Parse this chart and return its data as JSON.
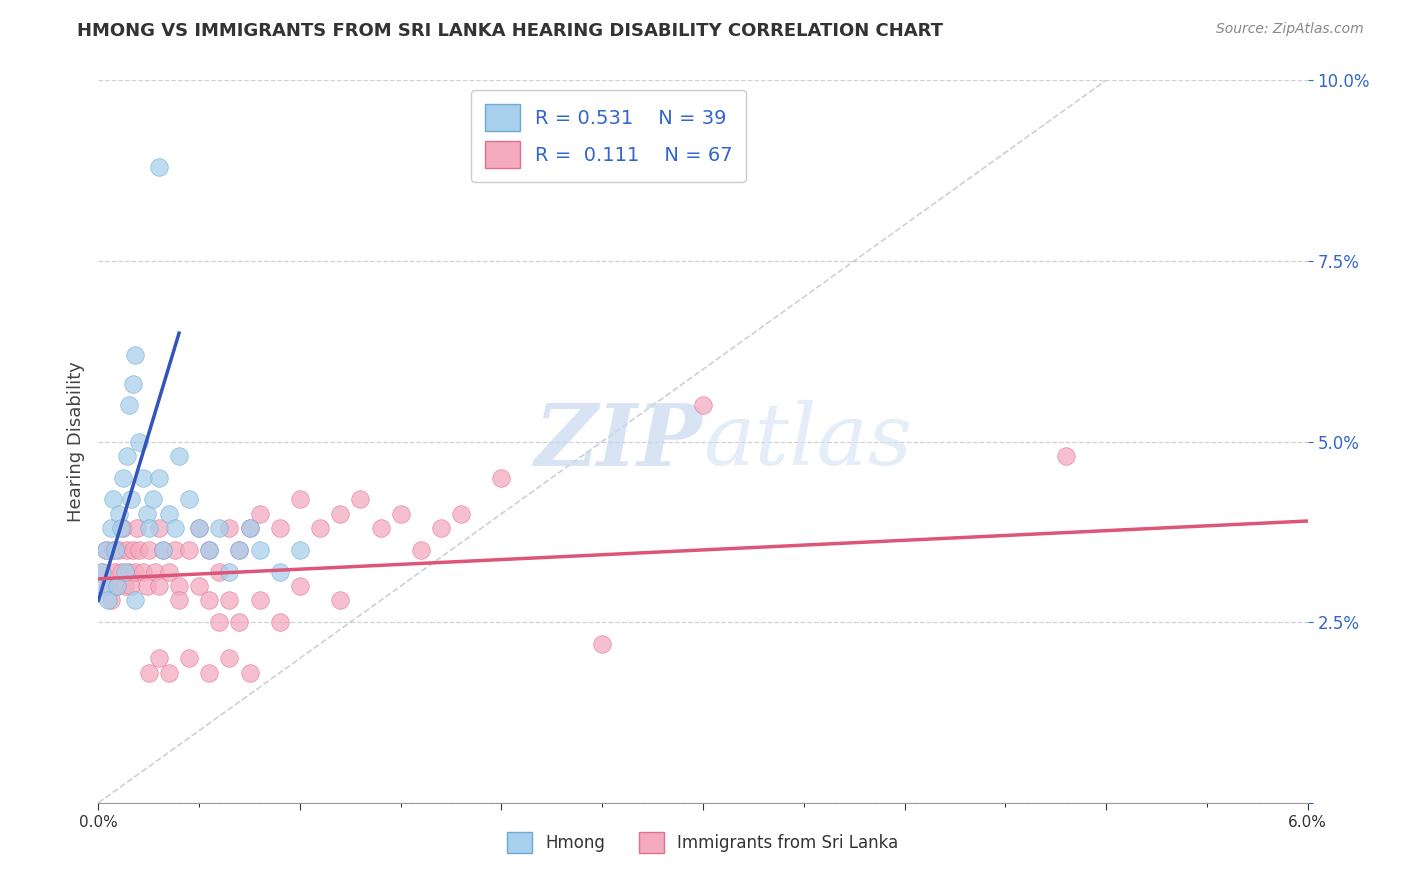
{
  "title": "HMONG VS IMMIGRANTS FROM SRI LANKA HEARING DISABILITY CORRELATION CHART",
  "source": "Source: ZipAtlas.com",
  "ylabel": "Hearing Disability",
  "xlim": [
    0.0,
    6.0
  ],
  "ylim": [
    0.0,
    10.0
  ],
  "yticks": [
    0.0,
    2.5,
    5.0,
    7.5,
    10.0
  ],
  "xticks": [
    0.0,
    0.5,
    1.0,
    1.5,
    2.0,
    2.5,
    3.0,
    3.5,
    4.0,
    4.5,
    5.0,
    5.5,
    6.0
  ],
  "hmong_color": "#A8CFEC",
  "hmong_edge_color": "#6AAAD4",
  "sri_lanka_color": "#F4AABF",
  "sri_lanka_edge_color": "#E07090",
  "hmong_line_color": "#3355BB",
  "sri_lanka_line_color": "#DD5577",
  "ref_line_color": "#BBBBCC",
  "hmong_R": 0.531,
  "hmong_N": 39,
  "sri_lanka_R": 0.111,
  "sri_lanka_N": 67,
  "hmong_x": [
    0.02,
    0.03,
    0.04,
    0.05,
    0.06,
    0.07,
    0.08,
    0.09,
    0.1,
    0.11,
    0.12,
    0.13,
    0.14,
    0.15,
    0.16,
    0.17,
    0.18,
    0.2,
    0.22,
    0.24,
    0.25,
    0.27,
    0.3,
    0.32,
    0.35,
    0.38,
    0.4,
    0.45,
    0.5,
    0.55,
    0.6,
    0.65,
    0.7,
    0.75,
    0.8,
    0.9,
    1.0,
    0.3,
    0.18
  ],
  "hmong_y": [
    3.2,
    3.0,
    3.5,
    2.8,
    3.8,
    4.2,
    3.5,
    3.0,
    4.0,
    3.8,
    4.5,
    3.2,
    4.8,
    5.5,
    4.2,
    5.8,
    6.2,
    5.0,
    4.5,
    4.0,
    3.8,
    4.2,
    4.5,
    3.5,
    4.0,
    3.8,
    4.8,
    4.2,
    3.8,
    3.5,
    3.8,
    3.2,
    3.5,
    3.8,
    3.5,
    3.2,
    3.5,
    8.8,
    2.8
  ],
  "sri_lanka_x": [
    0.02,
    0.04,
    0.05,
    0.06,
    0.07,
    0.08,
    0.09,
    0.1,
    0.11,
    0.12,
    0.13,
    0.14,
    0.15,
    0.16,
    0.17,
    0.18,
    0.19,
    0.2,
    0.22,
    0.24,
    0.25,
    0.28,
    0.3,
    0.32,
    0.35,
    0.38,
    0.4,
    0.45,
    0.5,
    0.55,
    0.6,
    0.65,
    0.7,
    0.75,
    0.8,
    0.9,
    1.0,
    1.1,
    1.2,
    1.3,
    1.4,
    1.5,
    1.6,
    1.7,
    1.8,
    0.3,
    0.4,
    0.5,
    0.55,
    0.6,
    0.65,
    0.7,
    0.8,
    0.9,
    1.0,
    1.2,
    0.25,
    0.3,
    0.35,
    0.45,
    0.55,
    0.65,
    0.75,
    3.0,
    4.8,
    2.5,
    2.0
  ],
  "sri_lanka_y": [
    3.2,
    3.5,
    3.0,
    2.8,
    3.5,
    3.2,
    3.0,
    3.5,
    3.2,
    3.8,
    3.0,
    3.5,
    3.2,
    3.0,
    3.5,
    3.2,
    3.8,
    3.5,
    3.2,
    3.0,
    3.5,
    3.2,
    3.8,
    3.5,
    3.2,
    3.5,
    3.0,
    3.5,
    3.8,
    3.5,
    3.2,
    3.8,
    3.5,
    3.8,
    4.0,
    3.8,
    4.2,
    3.8,
    4.0,
    4.2,
    3.8,
    4.0,
    3.5,
    3.8,
    4.0,
    3.0,
    2.8,
    3.0,
    2.8,
    2.5,
    2.8,
    2.5,
    2.8,
    2.5,
    3.0,
    2.8,
    1.8,
    2.0,
    1.8,
    2.0,
    1.8,
    2.0,
    1.8,
    5.5,
    4.8,
    2.2,
    4.5
  ],
  "hmong_line_x": [
    0.0,
    0.4
  ],
  "hmong_line_y": [
    2.8,
    6.5
  ],
  "sri_line_x": [
    0.0,
    6.0
  ],
  "sri_line_y": [
    3.1,
    3.9
  ],
  "ref_line_x": [
    0.0,
    5.0
  ],
  "ref_line_y": [
    0.0,
    10.0
  ]
}
